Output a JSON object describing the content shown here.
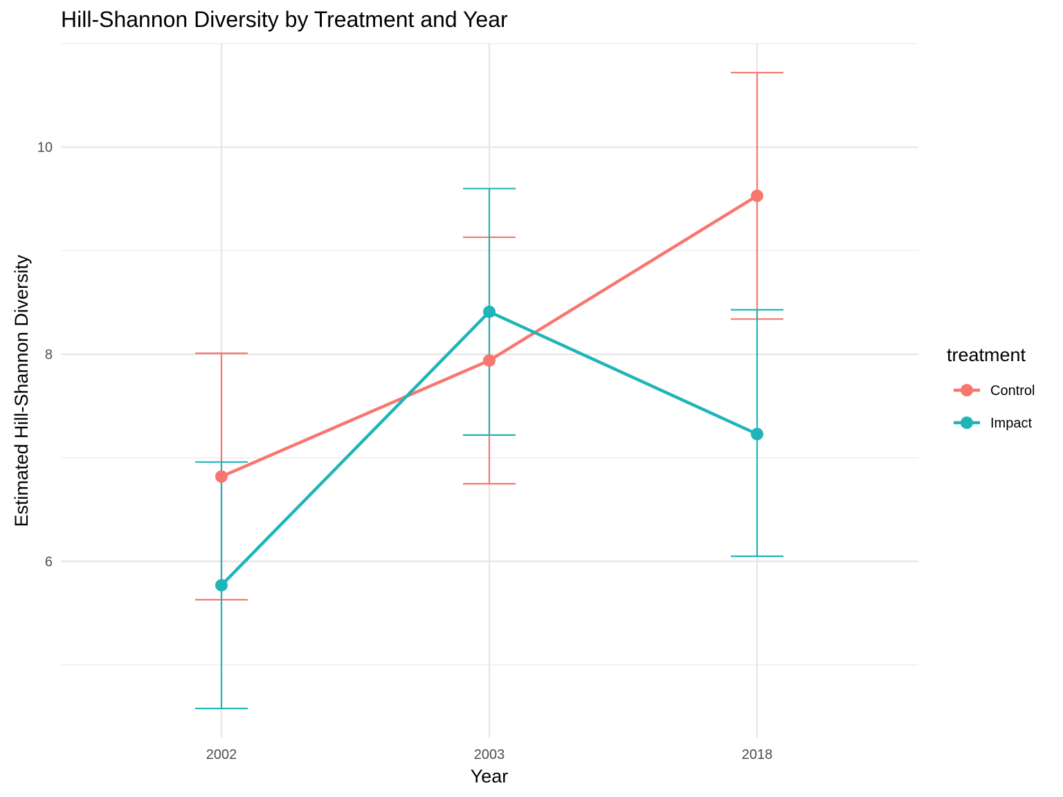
{
  "chart_data": {
    "type": "line",
    "title": "Hill-Shannon Diversity by Treatment and Year",
    "xlabel": "Year",
    "ylabel": "Estimated Hill-Shannon Diversity",
    "categories": [
      "2002",
      "2003",
      "2018"
    ],
    "ylim": [
      4.3,
      11.0
    ],
    "yticks": [
      6,
      8,
      10
    ],
    "grid": true,
    "legend": {
      "title": "treatment",
      "position": "right"
    },
    "series": [
      {
        "name": "Control",
        "color": "#f8766d",
        "values": [
          6.82,
          7.94,
          9.53
        ],
        "lower": [
          5.63,
          6.75,
          8.34
        ],
        "upper": [
          8.01,
          9.13,
          10.72
        ]
      },
      {
        "name": "Impact",
        "color": "#1fb5b8",
        "values": [
          5.77,
          8.41,
          7.23
        ],
        "lower": [
          4.58,
          7.22,
          6.05
        ],
        "upper": [
          6.96,
          9.6,
          8.43
        ]
      }
    ]
  }
}
